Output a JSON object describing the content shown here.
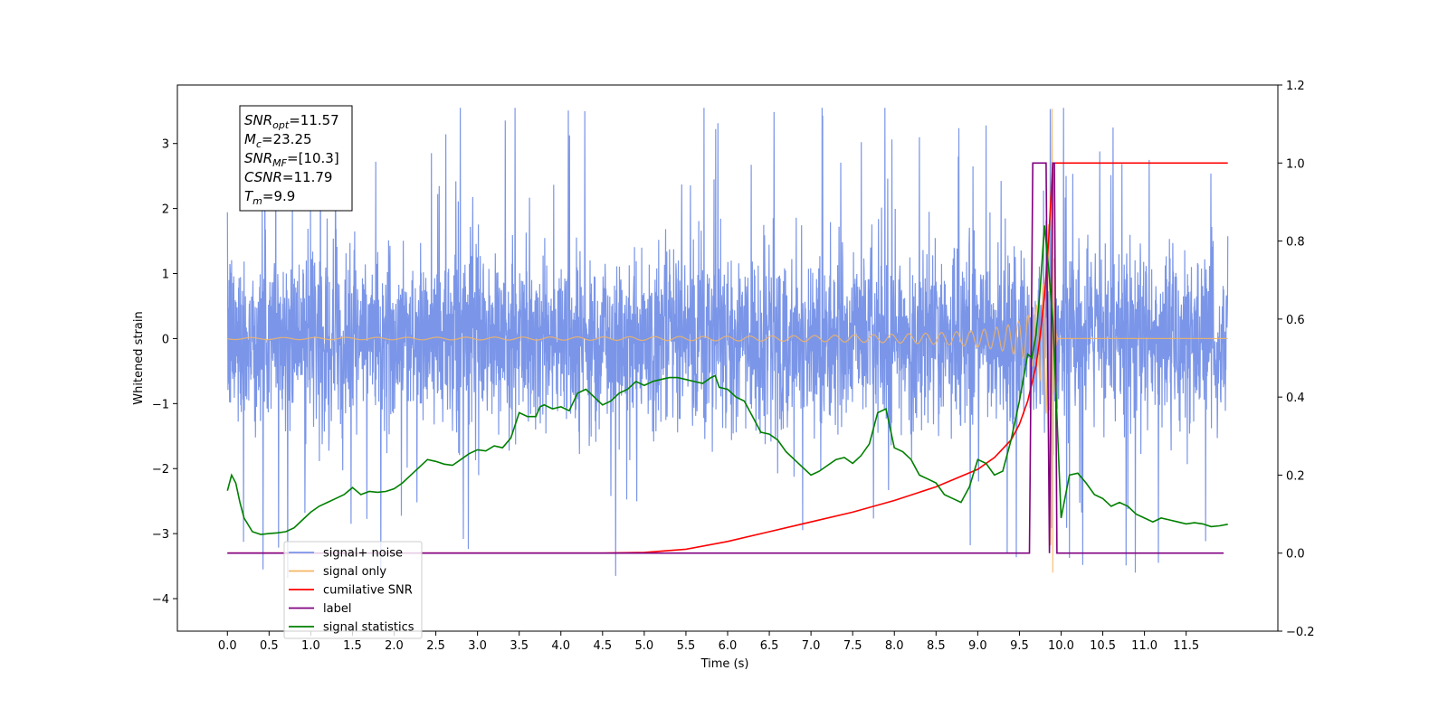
{
  "chart_data": {
    "type": "line",
    "xlabel": "Time (s)",
    "ylabel": "Whitened strain",
    "xlim": [
      -0.6,
      12.6
    ],
    "ylim_left": [
      -4.5,
      3.9
    ],
    "ylim_right": [
      -0.2,
      1.2
    ],
    "x_ticks": [
      "0.0",
      "0.5",
      "1.0",
      "1.5",
      "2.0",
      "2.5",
      "3.0",
      "3.5",
      "4.0",
      "4.5",
      "5.0",
      "5.5",
      "6.0",
      "6.5",
      "7.0",
      "7.5",
      "8.0",
      "8.5",
      "9.0",
      "9.5",
      "10.0",
      "10.5",
      "11.0",
      "11.5"
    ],
    "x_tick_values": [
      0,
      0.5,
      1,
      1.5,
      2,
      2.5,
      3,
      3.5,
      4,
      4.5,
      5,
      5.5,
      6,
      6.5,
      7,
      7.5,
      8,
      8.5,
      9,
      9.5,
      10,
      10.5,
      11,
      11.5
    ],
    "y_left_ticks": [
      "−4",
      "−3",
      "−2",
      "−1",
      "0",
      "1",
      "2",
      "3"
    ],
    "y_left_tick_values": [
      -4,
      -3,
      -2,
      -1,
      0,
      1,
      2,
      3
    ],
    "y_right_ticks": [
      "−0.2",
      "0.0",
      "0.2",
      "0.4",
      "0.6",
      "0.8",
      "1.0",
      "1.2"
    ],
    "y_right_tick_values": [
      -0.2,
      0,
      0.2,
      0.4,
      0.6,
      0.8,
      1.0,
      1.2
    ],
    "grid": false,
    "legend_position": "lower-left",
    "info_box": [
      {
        "base": "SNR",
        "sub": "opt",
        "value": "=11.57"
      },
      {
        "base": "M",
        "sub": "c",
        "value": "=23.25"
      },
      {
        "base": "SNR",
        "sub": "MF",
        "value": "=[10.3]"
      },
      {
        "base": "CSNR",
        "sub": "",
        "value": "=11.79"
      },
      {
        "base": "T",
        "sub": "m",
        "value": "=9.9"
      }
    ],
    "series": [
      {
        "name": "signal+ noise",
        "color": "#7b96e8",
        "axis": "left",
        "style": "noise",
        "x_range": [
          0.0,
          12.0
        ],
        "envelope_typical": 1.4,
        "envelope_peak": 3.5
      },
      {
        "name": "signal only",
        "color": "#f5b461",
        "axis": "left",
        "style": "chirp",
        "x_range": [
          0.0,
          12.0
        ],
        "merger_time": 9.9,
        "peak_amplitude": 3.6
      },
      {
        "name": "cumilative SNR",
        "color": "#ff0000",
        "axis": "right",
        "x": [
          0,
          4.5,
          5.0,
          5.5,
          6.0,
          6.5,
          7.0,
          7.5,
          8.0,
          8.5,
          9.0,
          9.2,
          9.4,
          9.5,
          9.6,
          9.7,
          9.75,
          9.8,
          9.85,
          9.9,
          10.0,
          12.0
        ],
        "y": [
          0,
          0,
          0.002,
          0.01,
          0.03,
          0.055,
          0.08,
          0.105,
          0.135,
          0.17,
          0.215,
          0.245,
          0.29,
          0.33,
          0.39,
          0.48,
          0.56,
          0.66,
          0.8,
          1.0,
          1.0,
          1.0
        ]
      },
      {
        "name": "label",
        "color": "#800080",
        "axis": "right",
        "x": [
          0,
          9.62,
          9.66,
          9.82,
          9.86,
          9.9,
          9.92,
          9.95,
          11.95
        ],
        "y": [
          0,
          0,
          1.0,
          1.0,
          0.0,
          1.0,
          1.0,
          0.0,
          0.0
        ]
      },
      {
        "name": "signal statistics",
        "color": "#008000",
        "axis": "right",
        "x": [
          0,
          0.05,
          0.1,
          0.15,
          0.2,
          0.3,
          0.4,
          0.5,
          0.6,
          0.7,
          0.8,
          0.9,
          1.0,
          1.1,
          1.2,
          1.3,
          1.4,
          1.5,
          1.6,
          1.7,
          1.8,
          1.9,
          2.0,
          2.1,
          2.2,
          2.3,
          2.4,
          2.5,
          2.6,
          2.7,
          2.8,
          2.9,
          3.0,
          3.1,
          3.2,
          3.3,
          3.4,
          3.5,
          3.6,
          3.7,
          3.75,
          3.8,
          3.9,
          4.0,
          4.1,
          4.2,
          4.3,
          4.4,
          4.5,
          4.6,
          4.7,
          4.8,
          4.9,
          5.0,
          5.1,
          5.2,
          5.3,
          5.4,
          5.5,
          5.6,
          5.7,
          5.8,
          5.85,
          5.9,
          6.0,
          6.1,
          6.2,
          6.3,
          6.4,
          6.5,
          6.6,
          6.7,
          6.8,
          6.9,
          7.0,
          7.1,
          7.2,
          7.3,
          7.4,
          7.5,
          7.6,
          7.7,
          7.8,
          7.9,
          8.0,
          8.1,
          8.2,
          8.3,
          8.4,
          8.5,
          8.6,
          8.7,
          8.8,
          8.9,
          9.0,
          9.1,
          9.2,
          9.3,
          9.4,
          9.5,
          9.55,
          9.6,
          9.65,
          9.7,
          9.75,
          9.8,
          9.85,
          9.9,
          9.95,
          10.0,
          10.1,
          10.2,
          10.3,
          10.4,
          10.5,
          10.6,
          10.7,
          10.8,
          10.9,
          11.0,
          11.1,
          11.2,
          11.3,
          11.4,
          11.5,
          11.6,
          11.7,
          11.8,
          11.9,
          12.0
        ],
        "y": [
          0.16,
          0.2,
          0.18,
          0.13,
          0.09,
          0.055,
          0.048,
          0.05,
          0.052,
          0.055,
          0.065,
          0.085,
          0.105,
          0.12,
          0.13,
          0.14,
          0.15,
          0.168,
          0.15,
          0.158,
          0.156,
          0.158,
          0.165,
          0.18,
          0.2,
          0.22,
          0.24,
          0.235,
          0.228,
          0.225,
          0.24,
          0.255,
          0.265,
          0.262,
          0.275,
          0.27,
          0.295,
          0.36,
          0.35,
          0.35,
          0.375,
          0.38,
          0.37,
          0.375,
          0.365,
          0.41,
          0.42,
          0.4,
          0.38,
          0.39,
          0.41,
          0.42,
          0.44,
          0.43,
          0.44,
          0.445,
          0.45,
          0.45,
          0.445,
          0.44,
          0.435,
          0.45,
          0.455,
          0.425,
          0.42,
          0.4,
          0.39,
          0.35,
          0.31,
          0.305,
          0.29,
          0.26,
          0.24,
          0.22,
          0.2,
          0.21,
          0.225,
          0.24,
          0.245,
          0.23,
          0.25,
          0.28,
          0.36,
          0.37,
          0.27,
          0.26,
          0.24,
          0.2,
          0.19,
          0.18,
          0.15,
          0.14,
          0.13,
          0.17,
          0.24,
          0.23,
          0.2,
          0.21,
          0.29,
          0.39,
          0.45,
          0.51,
          0.5,
          0.56,
          0.68,
          0.84,
          0.73,
          0.6,
          0.35,
          0.09,
          0.2,
          0.205,
          0.18,
          0.15,
          0.14,
          0.12,
          0.13,
          0.12,
          0.1,
          0.09,
          0.08,
          0.09,
          0.085,
          0.08,
          0.075,
          0.078,
          0.075,
          0.068,
          0.07,
          0.074
        ]
      }
    ]
  }
}
